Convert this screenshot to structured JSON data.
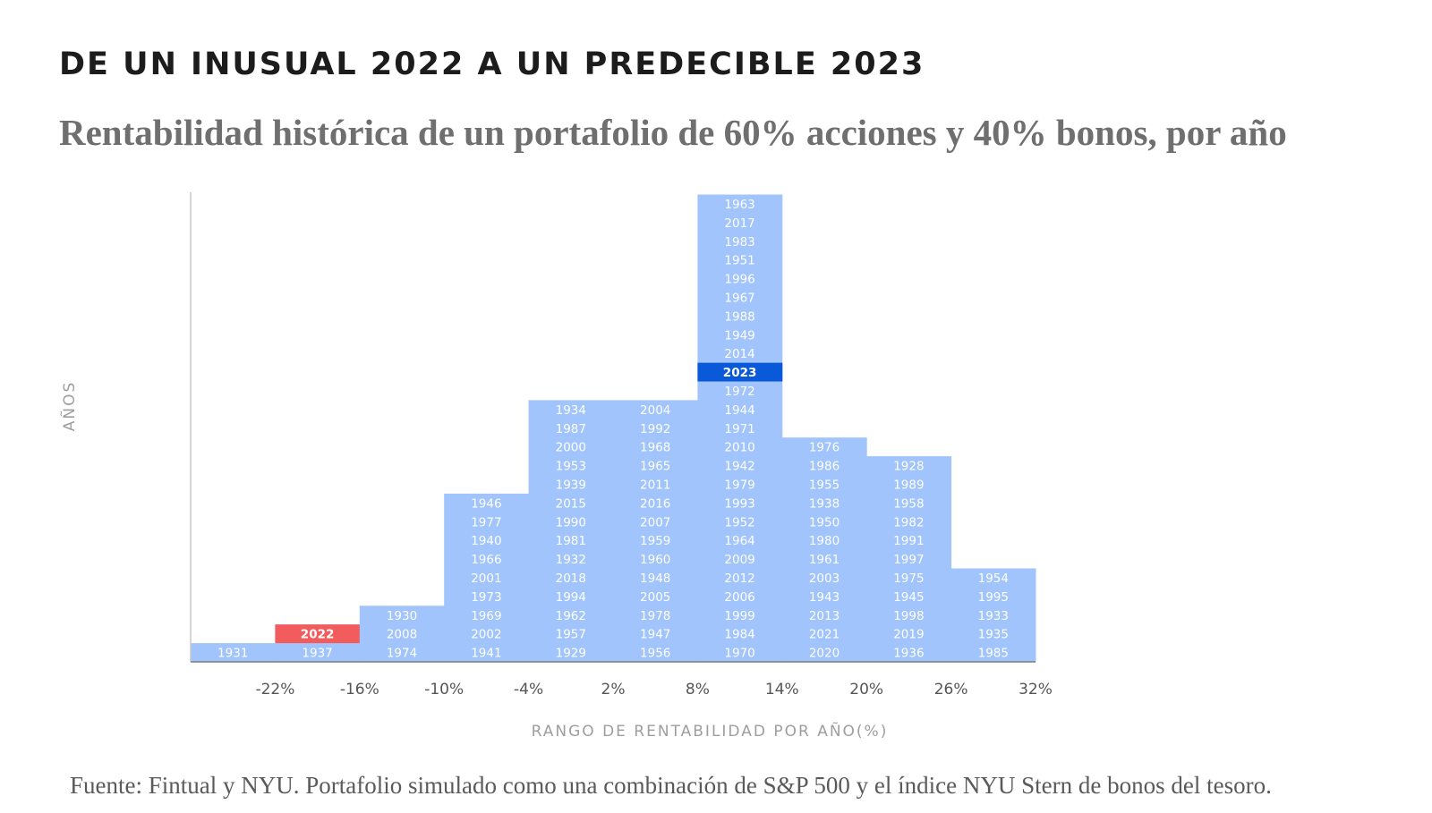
{
  "heading": "DE UN INUSUAL 2022 A UN PREDECIBLE 2023",
  "subtitle": "Rentabilidad histórica de un portafolio de 60% acciones y 40% bonos, por año",
  "source": "Fuente: Fintual y NYU. Portafolio simulado como una combinación de S&P 500 y el índice NYU Stern de bonos del tesoro.",
  "colors": {
    "bar": "#a0c4fb",
    "highlight_2022": "#f25c5c",
    "highlight_2023": "#0a59d9",
    "axis": "#c8c8c8"
  },
  "chart_data": {
    "type": "histogram",
    "title": "DE UN INUSUAL 2022 A UN PREDECIBLE 2023",
    "subtitle": "Rentabilidad histórica de un portafolio de 60% acciones y 40% bonos, por año",
    "xlabel": "RANGO DE RENTABILIDAD POR AÑO(%)",
    "ylabel": "AÑOS",
    "tick_labels": [
      "-22%",
      "-16%",
      "-10%",
      "-4%",
      "2%",
      "8%",
      "14%",
      "20%",
      "26%",
      "32%"
    ],
    "highlight": {
      "2022": "red",
      "2023": "blue"
    },
    "bins": [
      {
        "years": [
          "1931"
        ]
      },
      {
        "years": [
          "1937",
          "2022"
        ]
      },
      {
        "years": [
          "1974",
          "2008",
          "1930"
        ]
      },
      {
        "years": [
          "1941",
          "2002",
          "1969",
          "1973",
          "2001",
          "1966",
          "1940",
          "1977",
          "1946"
        ]
      },
      {
        "years": [
          "1929",
          "1957",
          "1962",
          "1994",
          "2018",
          "1932",
          "1981",
          "1990",
          "2015",
          "1939",
          "1953",
          "2000",
          "1987",
          "1934"
        ]
      },
      {
        "years": [
          "1956",
          "1947",
          "1978",
          "2005",
          "1948",
          "1960",
          "1959",
          "2007",
          "2016",
          "2011",
          "1965",
          "1968",
          "1992",
          "2004"
        ]
      },
      {
        "years": [
          "1970",
          "1984",
          "1999",
          "2006",
          "2012",
          "2009",
          "1964",
          "1952",
          "1993",
          "1979",
          "1942",
          "2010",
          "1971",
          "1944",
          "1972",
          "2023",
          "2014",
          "1949",
          "1988",
          "1967",
          "1996",
          "1951",
          "1983",
          "2017",
          "1963"
        ]
      },
      {
        "years": [
          "2020",
          "2021",
          "2013",
          "1943",
          "2003",
          "1961",
          "1980",
          "1950",
          "1938",
          "1955",
          "1986",
          "1976"
        ]
      },
      {
        "years": [
          "1936",
          "2019",
          "1998",
          "1945",
          "1975",
          "1997",
          "1991",
          "1982",
          "1958",
          "1989",
          "1928"
        ]
      },
      {
        "years": [
          "1985",
          "1935",
          "1933",
          "1995",
          "1954"
        ]
      }
    ]
  }
}
